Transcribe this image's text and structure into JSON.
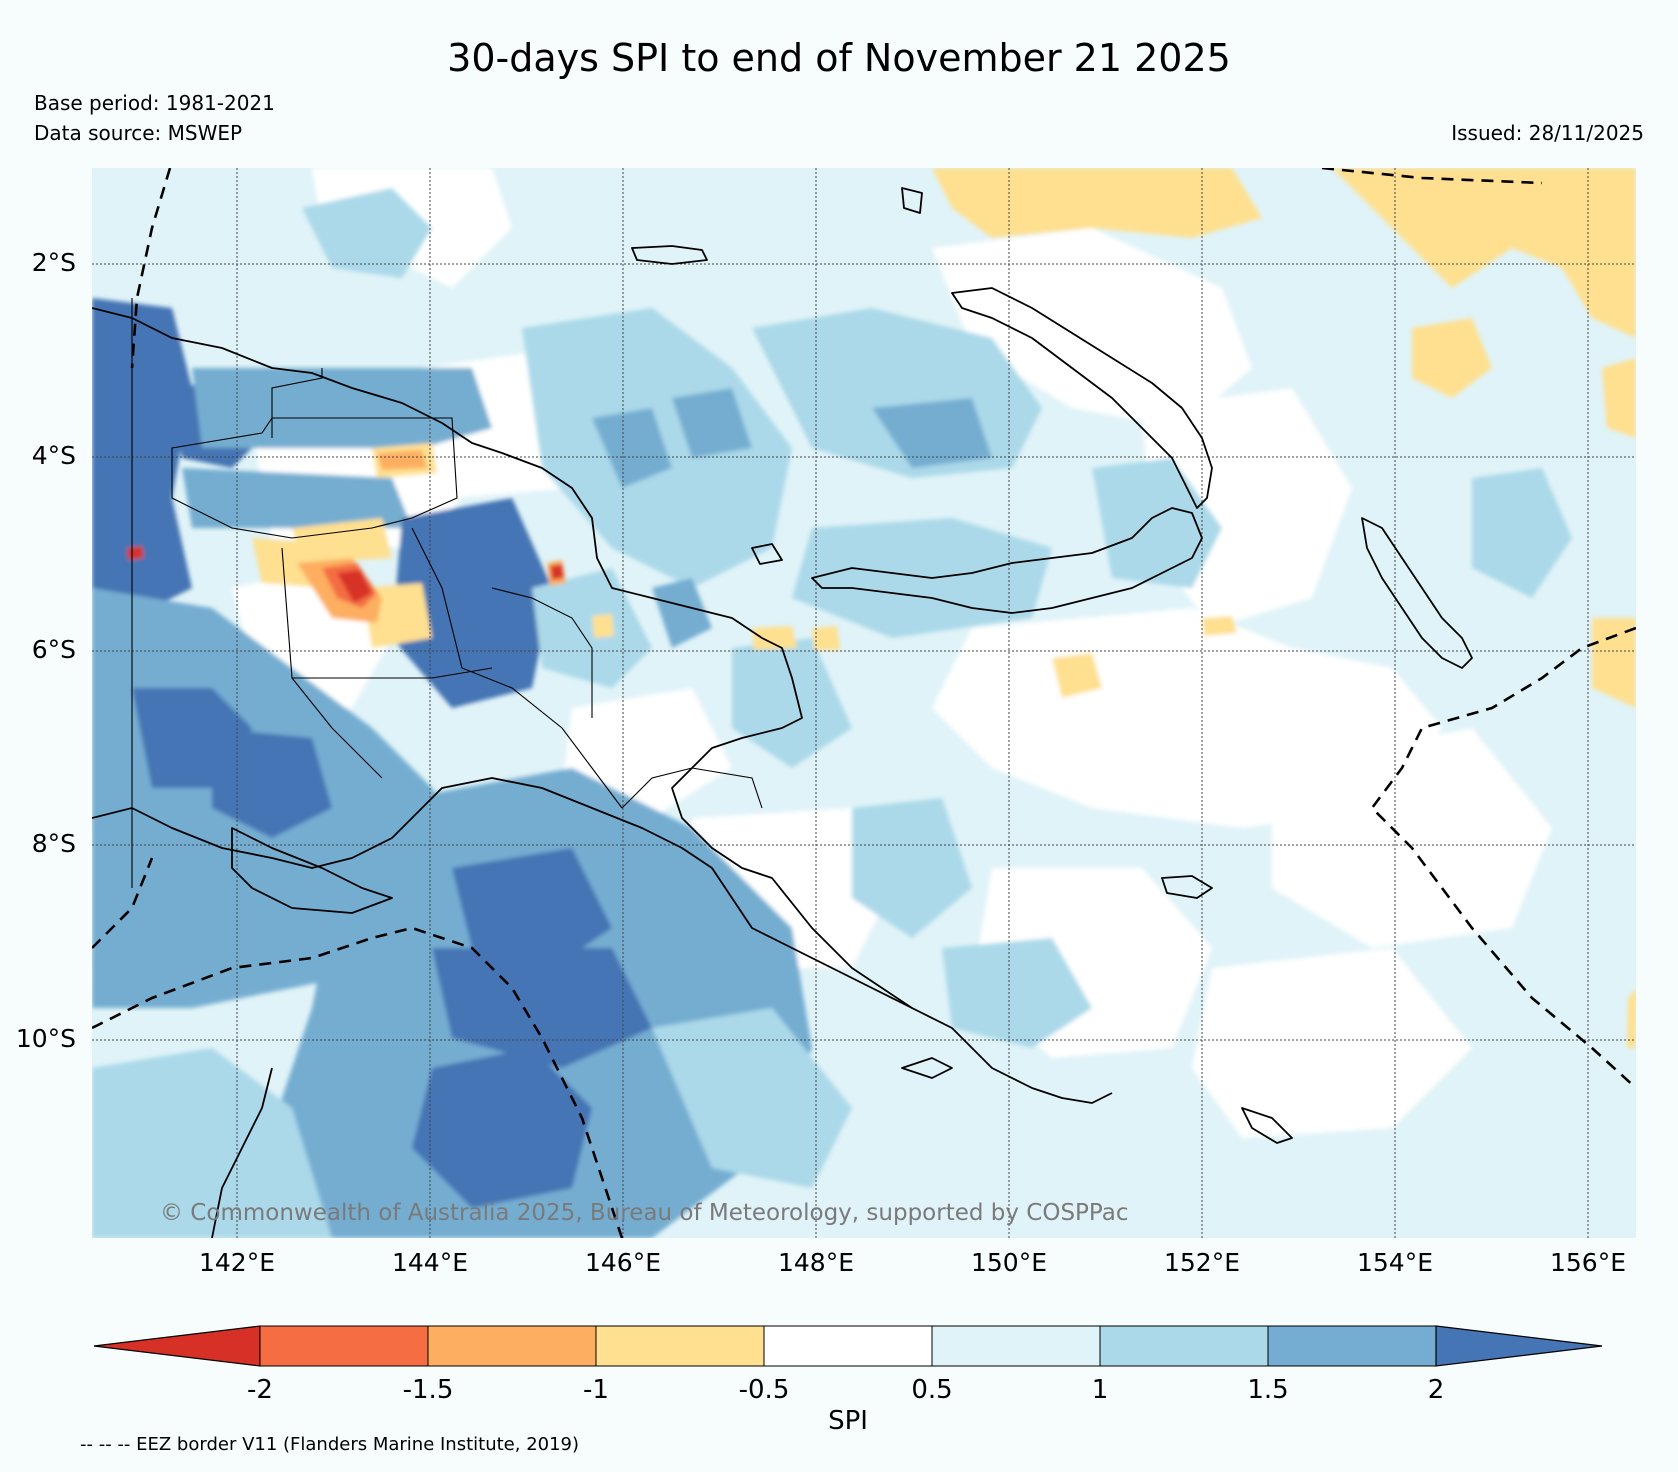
{
  "title": "30-days SPI to end of November 21 2025",
  "base_period": "Base period: 1981-2021",
  "data_source": "Data source: MSWEP",
  "issued": "Issued: 28/11/2025",
  "copyright": "© Commonwealth of Australia 2025, Bureau of Meteorology, supported by COSPPac",
  "eez_note": "-- -- -- EEZ border V11 (Flanders Marine Institute, 2019)",
  "map": {
    "lat_labels": [
      "2°S",
      "4°S",
      "6°S",
      "8°S",
      "10°S"
    ],
    "lon_labels": [
      "142°E",
      "144°E",
      "146°E",
      "148°E",
      "150°E",
      "152°E",
      "154°E",
      "156°E"
    ],
    "lat_values": [
      -2,
      -4,
      -6,
      -8,
      -10
    ],
    "lon_values": [
      142,
      144,
      146,
      148,
      150,
      152,
      154,
      156
    ],
    "lon_range": [
      140.5,
      156.5
    ],
    "lat_range": [
      -1.0,
      -12.1
    ]
  },
  "colorbar": {
    "label": "SPI",
    "ticks": [
      "-2",
      "-1.5",
      "-1",
      "-0.5",
      "0.5",
      "1",
      "1.5",
      "2"
    ],
    "colors": [
      "#d73027",
      "#f46d43",
      "#fdae61",
      "#fee090",
      "#ffffff",
      "#e0f3f8",
      "#abd9e9",
      "#74add1",
      "#4575b4"
    ]
  }
}
